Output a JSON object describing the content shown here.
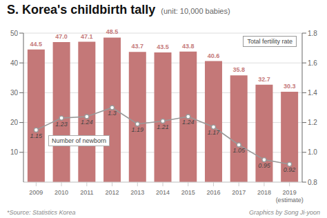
{
  "chart_data": {
    "type": "bar",
    "title": "S. Korea's childbirth tally",
    "subtitle": "(unit: 10,000 babies)",
    "categories": [
      "2009",
      "2010",
      "2011",
      "2012",
      "2013",
      "2014",
      "2015",
      "2016",
      "2017",
      "2018",
      "2019\n(estimate)"
    ],
    "series": [
      {
        "name": "Number of newborn",
        "type": "bar",
        "color": "#c47878",
        "values": [
          44.5,
          47.0,
          47.1,
          48.5,
          43.7,
          43.5,
          43.8,
          40.6,
          35.8,
          32.7,
          30.3
        ],
        "value_labels": [
          "44.5",
          "47.0",
          "47.1",
          "48.5",
          "43.7",
          "43.5",
          "43.8",
          "40.6",
          "35.8",
          "32.7",
          "30.3"
        ],
        "data_labels": true
      },
      {
        "name": "Total fertility rate",
        "type": "line",
        "color": "#999999",
        "axis": "y2",
        "marker": "circle",
        "values": [
          1.15,
          1.23,
          1.24,
          1.3,
          1.19,
          1.21,
          1.24,
          1.17,
          1.05,
          0.95,
          0.92
        ],
        "data_labels": true
      }
    ],
    "ylim": [
      0,
      50
    ],
    "yticks": [
      10,
      20,
      30,
      40,
      50
    ],
    "y2lim": [
      0.8,
      1.8
    ],
    "y2ticks": [
      0.8,
      {
        "value": 1,
        "label": "1.0"
      },
      1.2,
      1.4,
      1.6,
      1.8
    ],
    "grid": true,
    "annotations": [
      "*Source: Statistics Korea",
      "Graphics by Song Ji-yoon"
    ]
  }
}
